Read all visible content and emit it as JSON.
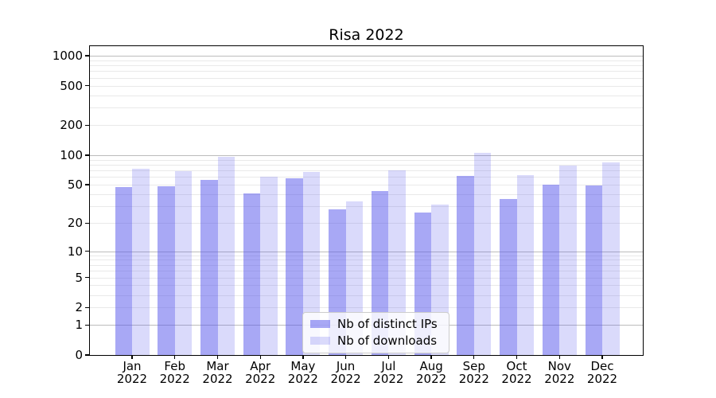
{
  "chart_data": {
    "type": "bar",
    "title": "Risa 2022",
    "categories": [
      "Jan 2022",
      "Feb 2022",
      "Mar 2022",
      "Apr 2022",
      "May 2022",
      "Jun 2022",
      "Jul 2022",
      "Aug 2022",
      "Sep 2022",
      "Oct 2022",
      "Nov 2022",
      "Dec 2022"
    ],
    "series": [
      {
        "key": "distinct-ips",
        "name": "Nb of distinct IPs",
        "color": "rgba(88,88,235,0.52)",
        "values": [
          47,
          48,
          56,
          41,
          58,
          28,
          43,
          26,
          62,
          36,
          50,
          49
        ]
      },
      {
        "key": "downloads",
        "name": "Nb of downloads",
        "color": "rgba(88,88,235,0.22)",
        "values": [
          73,
          69,
          96,
          60,
          67,
          34,
          70,
          31,
          106,
          63,
          78,
          84
        ]
      }
    ],
    "xlabel": "",
    "ylabel": "",
    "yscale": "log1p",
    "yticks": [
      0,
      1,
      2,
      5,
      10,
      20,
      50,
      100,
      200,
      500,
      1000
    ],
    "ylim": [
      0,
      1250
    ],
    "grid": "on",
    "legend_position": "lower center",
    "colors": {
      "grid_major": "#bcbcbc",
      "grid_minor": "#e9e9e9",
      "axis": "#000000",
      "background": "#ffffff",
      "legend_border": "#cccccc"
    }
  }
}
